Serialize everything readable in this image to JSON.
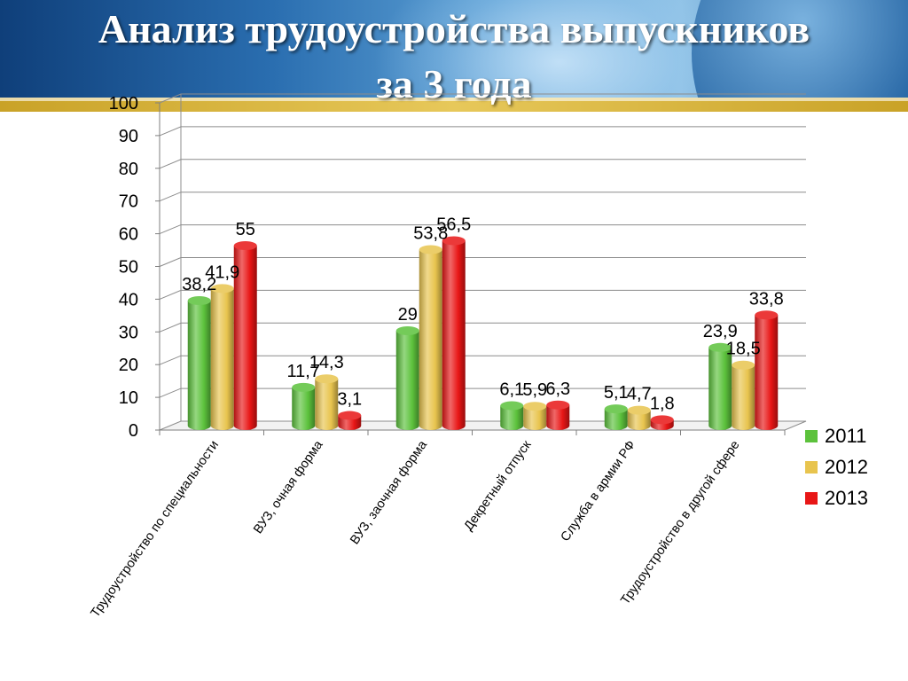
{
  "header": {
    "title_line1": "Анализ трудоустройства выпускников",
    "title_line2": "за 3 года"
  },
  "chart_data": {
    "type": "bar",
    "title": "",
    "xlabel": "",
    "ylabel": "",
    "ylim": [
      0,
      100
    ],
    "yticks": [
      "0",
      "10",
      "20",
      "30",
      "40",
      "50",
      "60",
      "70",
      "80",
      "90",
      "100"
    ],
    "grid": true,
    "legend_position": "right",
    "categories": [
      "Трудоустройство по специальности",
      "ВУЗ, очная форма",
      "ВУЗ, заочная форма",
      "Декретный отпуск",
      "Служба в армии РФ",
      "Трудоустройство в другой сфере"
    ],
    "series": [
      {
        "name": "2011",
        "color": "#5cc23c",
        "values": [
          38.2,
          11.7,
          29,
          6.1,
          5.1,
          23.9
        ],
        "labels": [
          "38,2",
          "11,7",
          "29",
          "6,1",
          "5,1",
          "23,9"
        ]
      },
      {
        "name": "2012",
        "color": "#e8c44e",
        "values": [
          41.9,
          14.3,
          53.8,
          5.9,
          4.7,
          18.5
        ],
        "labels": [
          "41,9",
          "14,3",
          "53,8",
          "5,9",
          "4,7",
          "18,5"
        ]
      },
      {
        "name": "2013",
        "color": "#e81616",
        "values": [
          55,
          3.1,
          56.5,
          6.3,
          1.8,
          33.8
        ],
        "labels": [
          "55",
          "3,1",
          "56,5",
          "6,3",
          "1,8",
          "33,8"
        ]
      }
    ]
  }
}
